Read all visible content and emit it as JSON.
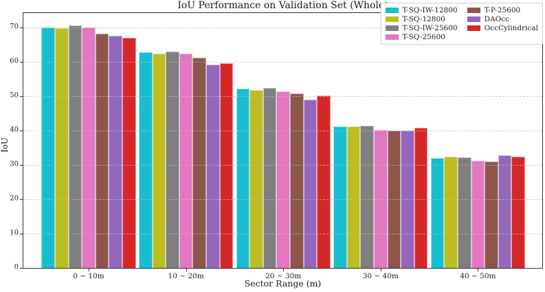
{
  "chart_data": {
    "type": "bar",
    "title": "IoU Performance on Validation Set (Whole)",
    "xlabel": "Sector Range (m)",
    "ylabel": "IoU",
    "ylim": [
      0,
      74.2
    ],
    "yticks": [
      0,
      10,
      20,
      30,
      40,
      50,
      60,
      70
    ],
    "grid": "horizontal-dashed",
    "legend_position": "upper-right-inside",
    "legend_columns": 2,
    "legend_column_split": [
      4,
      3
    ],
    "categories": [
      "0 ~ 10m",
      "10 ~ 20m",
      "20 ~ 30m",
      "30 ~ 40m",
      "40 ~ 50m"
    ],
    "series": [
      {
        "name": "T-SQ-IW-12800",
        "color": "#17becf",
        "values": [
          70.1,
          62.9,
          52.2,
          41.3,
          32.0
        ]
      },
      {
        "name": "T-SQ-12800",
        "color": "#bcbd22",
        "values": [
          69.9,
          62.4,
          51.9,
          41.2,
          32.4
        ]
      },
      {
        "name": "T-SQ-IW-25600",
        "color": "#7f7f7f",
        "values": [
          70.6,
          63.1,
          52.4,
          41.4,
          32.3
        ]
      },
      {
        "name": "T-SQ-25600",
        "color": "#e377c2",
        "values": [
          70.0,
          62.5,
          51.5,
          40.3,
          31.2
        ]
      },
      {
        "name": "T-P-25600",
        "color": "#8c564b",
        "values": [
          68.2,
          61.2,
          50.9,
          40.0,
          31.0
        ]
      },
      {
        "name": "DAOcc",
        "color": "#9467bd",
        "values": [
          67.7,
          59.3,
          49.0,
          40.1,
          32.9
        ]
      },
      {
        "name": "OccCylindrical",
        "color": "#d62728",
        "values": [
          67.1,
          59.7,
          50.2,
          40.8,
          32.5
        ]
      }
    ],
    "colors": {
      "grid": "#bebebe",
      "spine": "#2e2e2e",
      "background": "#ffffff"
    }
  }
}
